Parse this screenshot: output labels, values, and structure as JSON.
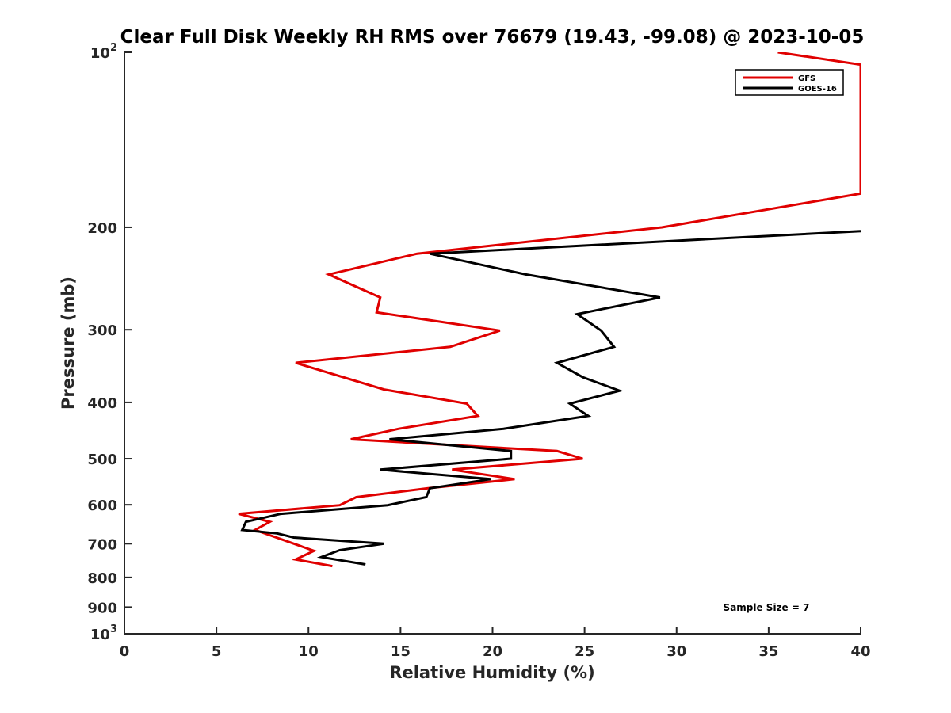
{
  "chart_data": {
    "type": "line",
    "title": "Clear Full Disk Weekly RH RMS over 76679 (19.43, -99.08) @ 2023-10-05",
    "xlabel": "Relative Humidity (%)",
    "ylabel": "Pressure (mb)",
    "xlim": [
      0,
      40
    ],
    "ylim": [
      1000,
      100
    ],
    "y_scale": "log",
    "y_reversed": true,
    "x_ticks": [
      "0",
      "5",
      "10",
      "15",
      "20",
      "25",
      "30",
      "35",
      "40"
    ],
    "y_ticks": [
      {
        "value": 100,
        "base": "10",
        "exp": "2"
      },
      {
        "value": 200,
        "label": "200"
      },
      {
        "value": 300,
        "label": "300"
      },
      {
        "value": 400,
        "label": "400"
      },
      {
        "value": 500,
        "label": "500"
      },
      {
        "value": 600,
        "label": "600"
      },
      {
        "value": 700,
        "label": "700"
      },
      {
        "value": 800,
        "label": "800"
      },
      {
        "value": 900,
        "label": "900"
      },
      {
        "value": 1000,
        "base": "10",
        "exp": "3"
      }
    ],
    "grid": false,
    "legend_position": "top-right",
    "annotation": "Sample Size = 7",
    "series": [
      {
        "name": "GFS",
        "color": "#e00000",
        "x": [
          35.5,
          40,
          40,
          29.2,
          15.9,
          11.1,
          13.9,
          13.7,
          20.4,
          17.7,
          9.3,
          14.1,
          18.6,
          19.2,
          14.9,
          12.3,
          23.5,
          24.9,
          17.8,
          21.2,
          16.5,
          12.6,
          11.7,
          6.2,
          7.9,
          7.1,
          10.3,
          9.3,
          11.3
        ],
        "y": [
          100,
          105,
          175,
          200,
          222,
          241,
          264,
          280,
          301,
          321,
          342,
          380,
          402,
          422,
          444,
          463,
          485,
          500,
          522,
          542,
          562,
          582,
          601,
          622,
          642,
          663,
          720,
          745,
          765
        ]
      },
      {
        "name": "GOES-16",
        "color": "#000000",
        "x": [
          40,
          16.6,
          21.8,
          29.1,
          24.6,
          25.9,
          26.6,
          23.5,
          24.9,
          26.9,
          24.2,
          25.2,
          20.6,
          14.4,
          21,
          21,
          13.9,
          19.9,
          16.6,
          16.4,
          14.3,
          8.5,
          6.6,
          6.4,
          8.3,
          9.2,
          14.1,
          11.7,
          10.7,
          13.1
        ],
        "y": [
          203,
          222,
          241,
          264,
          282,
          301,
          321,
          342,
          362,
          382,
          402,
          422,
          444,
          463,
          485,
          500,
          522,
          542,
          562,
          582,
          601,
          622,
          642,
          663,
          672,
          683,
          700,
          718,
          738,
          760
        ]
      }
    ]
  }
}
